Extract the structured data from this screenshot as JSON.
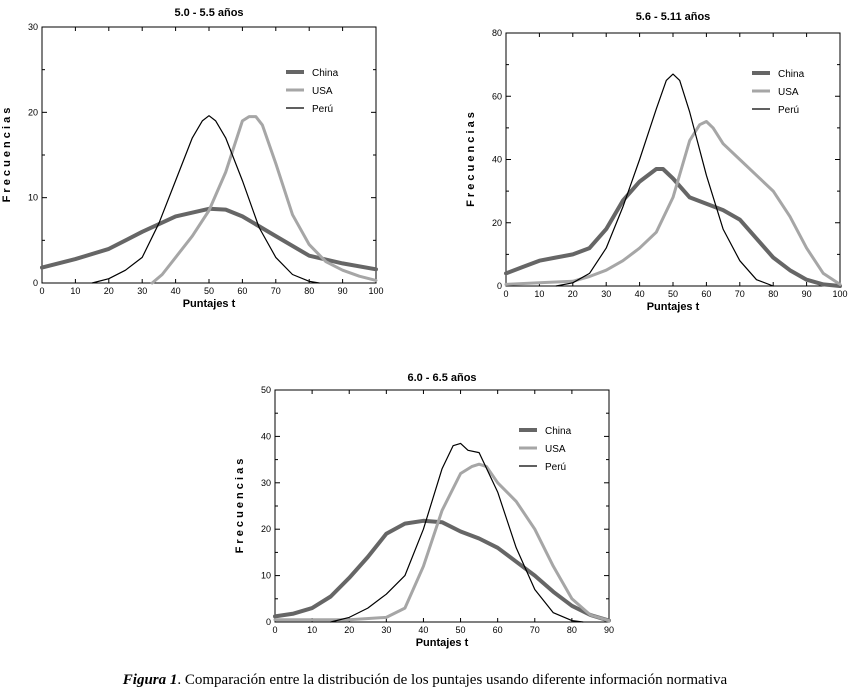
{
  "caption": {
    "figure": "Figura 1",
    "text": ". Comparación entre la distribución de los puntajes usando diferente información normativa"
  },
  "colors": {
    "China": "#666666",
    "USA": "#a6a6a6",
    "Perú": "#000000"
  },
  "chart_data": [
    {
      "type": "line",
      "title": "5.0 - 5.5 años",
      "xlabel": "Puntajes t",
      "ylabel": "F r e c u e n c i a s",
      "xlim": [
        0,
        100
      ],
      "ylim": [
        0,
        30
      ],
      "xticks": [
        0,
        10,
        20,
        30,
        40,
        50,
        60,
        70,
        80,
        90,
        100
      ],
      "yticks": [
        0,
        10,
        20,
        30
      ],
      "legend_position": "top-right",
      "series": [
        {
          "name": "China",
          "x": [
            0,
            10,
            20,
            30,
            40,
            50,
            55,
            60,
            70,
            80,
            90,
            100
          ],
          "y": [
            1.8,
            2.8,
            4,
            6,
            7.8,
            8.7,
            8.6,
            7.8,
            5.5,
            3.2,
            2.3,
            1.6
          ]
        },
        {
          "name": "USA",
          "x": [
            33,
            36,
            40,
            45,
            50,
            55,
            60,
            62,
            64,
            66,
            70,
            75,
            80,
            85,
            90,
            95,
            100
          ],
          "y": [
            0,
            1,
            3,
            5.5,
            8.5,
            13,
            19,
            19.5,
            19.5,
            18.5,
            14,
            8,
            4.5,
            2.5,
            1.5,
            0.8,
            0.3
          ]
        },
        {
          "name": "Perú",
          "x": [
            15,
            20,
            25,
            30,
            35,
            40,
            45,
            48,
            50,
            52,
            55,
            60,
            65,
            70,
            75,
            80,
            83
          ],
          "y": [
            0,
            0.5,
            1.5,
            3,
            7,
            12,
            17,
            19,
            19.6,
            19,
            17,
            12,
            6.5,
            3,
            1,
            0.2,
            0
          ]
        }
      ]
    },
    {
      "type": "line",
      "title": "5.6 - 5.11 años",
      "xlabel": "Puntajes t",
      "ylabel": "F r e c u e n c i a s",
      "xlim": [
        0,
        100
      ],
      "ylim": [
        0,
        80
      ],
      "xticks": [
        0,
        10,
        20,
        30,
        40,
        50,
        60,
        70,
        80,
        90,
        100
      ],
      "yticks": [
        0,
        20,
        40,
        60,
        80
      ],
      "legend_position": "top-right",
      "series": [
        {
          "name": "China",
          "x": [
            0,
            5,
            10,
            15,
            20,
            25,
            30,
            35,
            40,
            45,
            47,
            50,
            55,
            60,
            65,
            70,
            75,
            80,
            85,
            90,
            95,
            100
          ],
          "y": [
            4,
            6,
            8,
            9,
            10,
            12,
            18,
            27,
            33,
            37,
            37,
            34,
            28,
            26,
            24,
            21,
            15,
            9,
            5,
            2,
            0.5,
            0
          ]
        },
        {
          "name": "USA",
          "x": [
            0,
            10,
            20,
            25,
            30,
            35,
            40,
            45,
            50,
            55,
            58,
            60,
            62,
            65,
            70,
            75,
            80,
            85,
            90,
            95,
            100
          ],
          "y": [
            0.5,
            1,
            1.5,
            3,
            5,
            8,
            12,
            17,
            28,
            46,
            51,
            52,
            50,
            45,
            40,
            35,
            30,
            22,
            12,
            4,
            0.5
          ]
        },
        {
          "name": "Perú",
          "x": [
            15,
            20,
            25,
            30,
            35,
            40,
            45,
            48,
            50,
            52,
            55,
            60,
            65,
            70,
            75,
            80
          ],
          "y": [
            0,
            1,
            4,
            12,
            25,
            40,
            56,
            65,
            67,
            65,
            55,
            35,
            18,
            8,
            2,
            0
          ]
        }
      ]
    },
    {
      "type": "line",
      "title": "6.0 - 6.5 años",
      "xlabel": "Puntajes t",
      "ylabel": "F r e c u e n c i a s",
      "xlim": [
        0,
        90
      ],
      "ylim": [
        0,
        50
      ],
      "xticks": [
        0,
        10,
        20,
        30,
        40,
        50,
        60,
        70,
        80,
        90
      ],
      "yticks": [
        0,
        10,
        20,
        30,
        40,
        50
      ],
      "legend_position": "top-right",
      "series": [
        {
          "name": "China",
          "x": [
            0,
            5,
            10,
            15,
            20,
            25,
            30,
            35,
            40,
            45,
            50,
            55,
            60,
            65,
            70,
            75,
            80,
            85,
            90
          ],
          "y": [
            1.2,
            1.8,
            3,
            5.5,
            9.5,
            14,
            19,
            21.2,
            21.8,
            21.5,
            19.5,
            18,
            16,
            13,
            10,
            6.5,
            3.5,
            1.5,
            0.3
          ]
        },
        {
          "name": "USA",
          "x": [
            0,
            10,
            20,
            30,
            35,
            40,
            45,
            50,
            53,
            55,
            57,
            60,
            65,
            70,
            75,
            80,
            85,
            90
          ],
          "y": [
            0.5,
            0.5,
            0.5,
            1,
            3,
            12,
            24,
            32,
            33.5,
            34,
            33.5,
            30,
            26,
            20,
            12,
            5,
            1.5,
            0.3
          ]
        },
        {
          "name": "Perú",
          "x": [
            15,
            20,
            25,
            30,
            35,
            40,
            45,
            48,
            50,
            52,
            55,
            60,
            65,
            70,
            75,
            80,
            83
          ],
          "y": [
            0,
            1,
            3,
            6,
            10,
            20,
            33,
            38,
            38.5,
            37,
            36.5,
            28,
            16,
            7,
            2,
            0.3,
            0
          ]
        }
      ]
    }
  ]
}
